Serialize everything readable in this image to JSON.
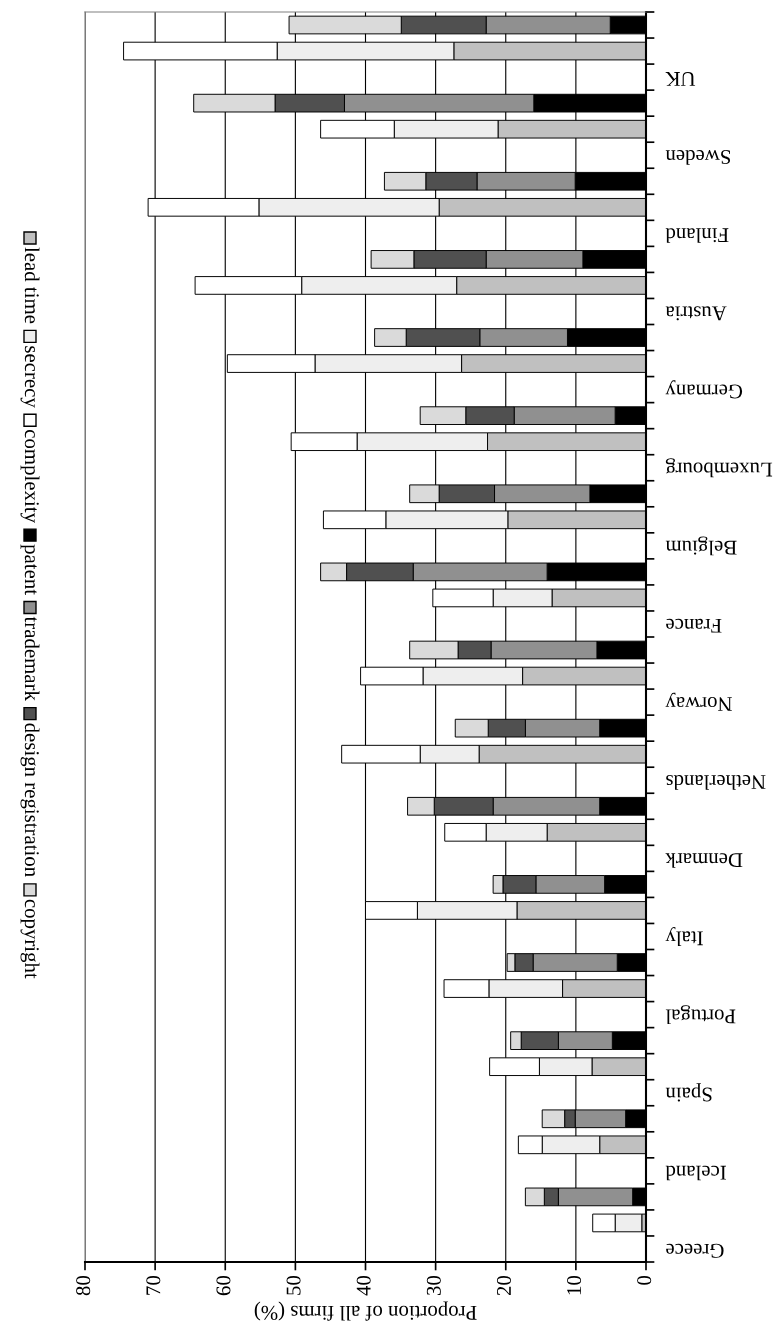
{
  "chart_data": {
    "type": "bar",
    "orientation": "horizontal",
    "stacked": true,
    "xlabel": "Proportion of all firms (%)",
    "categories": [
      null,
      null,
      "UK",
      null,
      null,
      "Sweden",
      null,
      null,
      "Finland",
      null,
      null,
      "Austria",
      null,
      null,
      "Germany",
      null,
      null,
      "Luxembourg",
      null,
      null,
      "Belgium",
      null,
      null,
      "France",
      null,
      null,
      "Norway",
      null,
      null,
      "Netherlands",
      null,
      null,
      "Denmark",
      null,
      null,
      "Italy",
      null,
      null,
      "Portugal",
      null,
      null,
      "Spain",
      null,
      null,
      "Iceland",
      null,
      null,
      "Greece"
    ],
    "series": [
      {
        "name": "lead time",
        "color": "#c0c0c0",
        "values": [
          null,
          27.4,
          null,
          null,
          21.1,
          null,
          null,
          29.5,
          null,
          null,
          27.0,
          null,
          null,
          26.3,
          null,
          null,
          22.6,
          null,
          null,
          19.7,
          null,
          null,
          13.4,
          null,
          null,
          17.6,
          null,
          null,
          23.8,
          null,
          null,
          14.1,
          null,
          null,
          18.4,
          null,
          null,
          11.9,
          null,
          null,
          7.7,
          null,
          null,
          6.6,
          null,
          null,
          0.6,
          null
        ]
      },
      {
        "name": "secrecy",
        "color": "#eeeeee",
        "values": [
          null,
          25.2,
          null,
          null,
          14.8,
          null,
          null,
          25.7,
          null,
          null,
          22.1,
          null,
          null,
          20.9,
          null,
          null,
          18.6,
          null,
          null,
          17.4,
          null,
          null,
          8.4,
          null,
          null,
          14.2,
          null,
          null,
          8.4,
          null,
          null,
          8.7,
          null,
          null,
          14.2,
          null,
          null,
          10.5,
          null,
          null,
          7.5,
          null,
          null,
          8.2,
          null,
          null,
          3.8,
          null
        ]
      },
      {
        "name": "complexity",
        "color": "#ffffff",
        "values": [
          null,
          21.9,
          null,
          null,
          10.5,
          null,
          null,
          15.8,
          null,
          null,
          15.2,
          null,
          null,
          12.5,
          null,
          null,
          9.4,
          null,
          null,
          8.9,
          null,
          null,
          8.6,
          null,
          null,
          8.9,
          null,
          null,
          11.2,
          null,
          null,
          5.9,
          null,
          null,
          7.4,
          null,
          null,
          6.4,
          null,
          null,
          7.1,
          null,
          null,
          3.4,
          null,
          null,
          3.2,
          null
        ]
      },
      {
        "name": "patent",
        "color": "#000000",
        "values": [
          5.1,
          null,
          null,
          16.0,
          null,
          null,
          10.1,
          null,
          null,
          9.0,
          null,
          null,
          11.2,
          null,
          null,
          4.4,
          null,
          null,
          8.0,
          null,
          null,
          14.1,
          null,
          null,
          7.0,
          null,
          null,
          6.6,
          null,
          null,
          6.6,
          null,
          null,
          5.9,
          null,
          null,
          4.1,
          null,
          null,
          4.8,
          null,
          null,
          2.9,
          null,
          null,
          1.9,
          null,
          null
        ]
      },
      {
        "name": "trademark",
        "color": "#909090",
        "values": [
          17.7,
          null,
          null,
          27.0,
          null,
          null,
          14.0,
          null,
          null,
          13.8,
          null,
          null,
          12.5,
          null,
          null,
          14.4,
          null,
          null,
          13.6,
          null,
          null,
          19.1,
          null,
          null,
          15.1,
          null,
          null,
          10.6,
          null,
          null,
          15.2,
          null,
          null,
          9.8,
          null,
          null,
          12.0,
          null,
          null,
          7.7,
          null,
          null,
          7.2,
          null,
          null,
          10.6,
          null,
          null
        ]
      },
      {
        "name": "design registration",
        "color": "#505050",
        "values": [
          12.1,
          null,
          null,
          9.9,
          null,
          null,
          7.3,
          null,
          null,
          10.3,
          null,
          null,
          10.5,
          null,
          null,
          6.9,
          null,
          null,
          7.9,
          null,
          null,
          9.5,
          null,
          null,
          4.7,
          null,
          null,
          5.3,
          null,
          null,
          8.4,
          null,
          null,
          4.7,
          null,
          null,
          2.6,
          null,
          null,
          5.3,
          null,
          null,
          1.5,
          null,
          null,
          2.0,
          null,
          null
        ]
      },
      {
        "name": "copyright",
        "color": "#dadada",
        "values": [
          16.0,
          null,
          null,
          11.6,
          null,
          null,
          5.9,
          null,
          null,
          6.1,
          null,
          null,
          4.5,
          null,
          null,
          6.5,
          null,
          null,
          4.2,
          null,
          null,
          3.7,
          null,
          null,
          6.9,
          null,
          null,
          4.7,
          null,
          null,
          3.8,
          null,
          null,
          1.4,
          null,
          null,
          1.1,
          null,
          null,
          1.5,
          null,
          null,
          3.2,
          null,
          null,
          2.7,
          null,
          null
        ]
      }
    ],
    "xlim": [
      80,
      0
    ],
    "xticks": [
      0,
      10,
      20,
      30,
      40,
      50,
      60,
      70,
      80
    ],
    "grid": "x",
    "legend": "left"
  }
}
